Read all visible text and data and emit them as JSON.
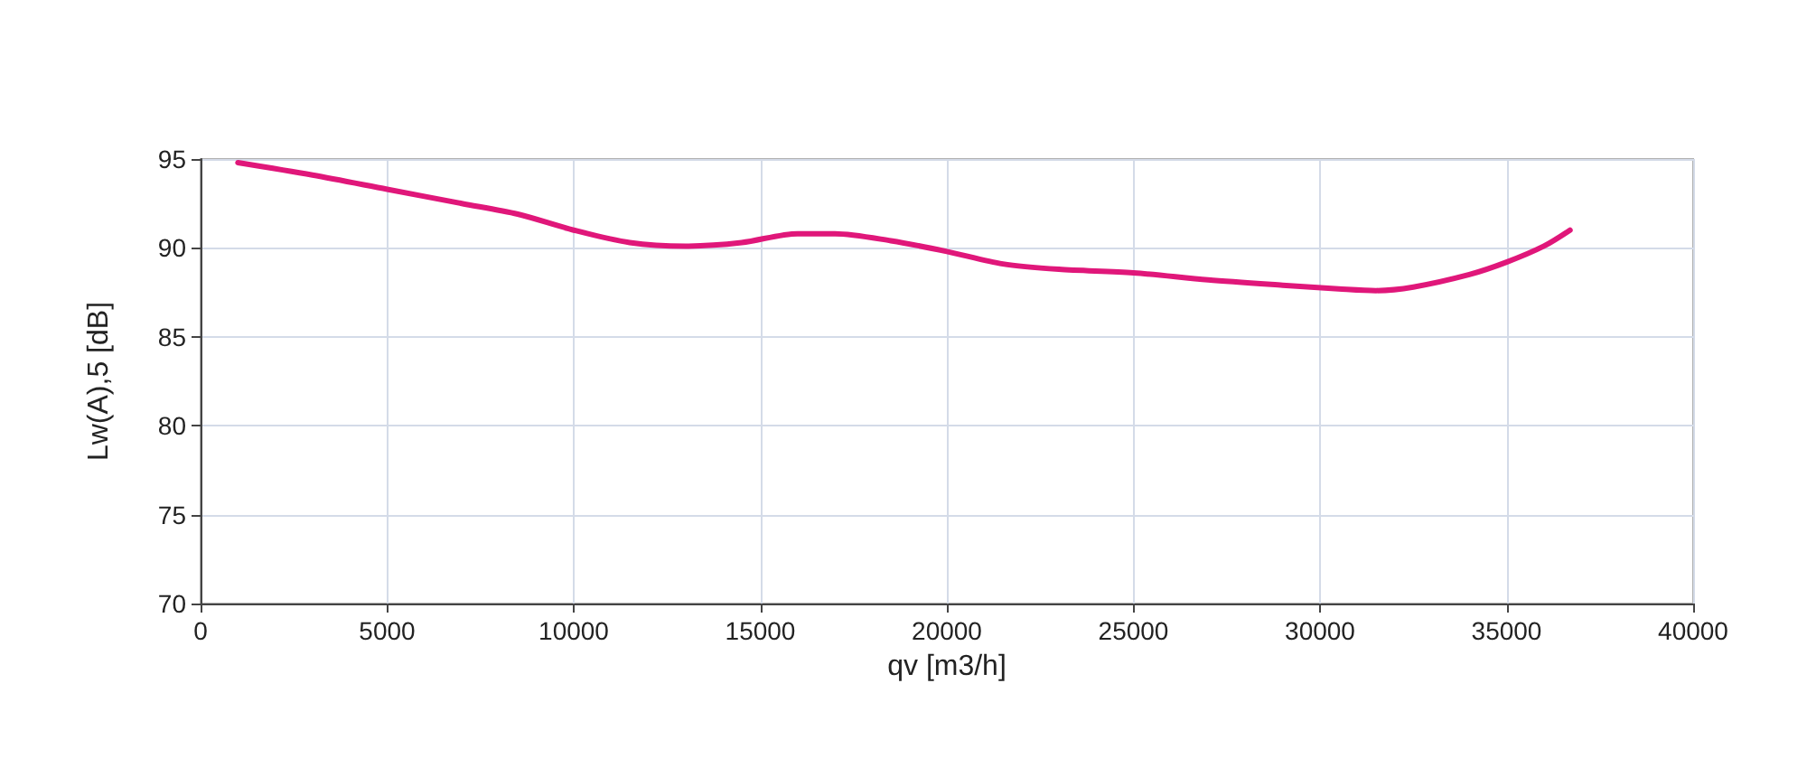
{
  "chart_data": {
    "type": "line",
    "xlabel": "qv [m3/h]",
    "ylabel": "Lw(A),5 [dB]",
    "x": [
      1000,
      3000,
      5000,
      7000,
      8500,
      10000,
      11500,
      13000,
      14500,
      16000,
      17000,
      18500,
      20000,
      21500,
      23000,
      25000,
      27000,
      29000,
      30500,
      31500,
      32500,
      34000,
      35000,
      36000,
      36700
    ],
    "series": [
      {
        "color": "#e0177a",
        "values": [
          94.8,
          94.1,
          93.3,
          92.5,
          91.9,
          91.0,
          90.3,
          90.1,
          90.3,
          90.8,
          90.8,
          90.4,
          89.8,
          89.1,
          88.8,
          88.6,
          88.2,
          87.9,
          87.7,
          87.6,
          87.8,
          88.5,
          89.2,
          90.1,
          91.0
        ]
      }
    ],
    "xlim": [
      0,
      40000
    ],
    "xticks": [
      0,
      5000,
      10000,
      15000,
      20000,
      25000,
      30000,
      35000,
      40000
    ],
    "ylim": [
      70,
      95
    ],
    "yticks": [
      70,
      75,
      80,
      85,
      90,
      95
    ],
    "grid": true,
    "marker": "none",
    "line_style": "solid"
  }
}
